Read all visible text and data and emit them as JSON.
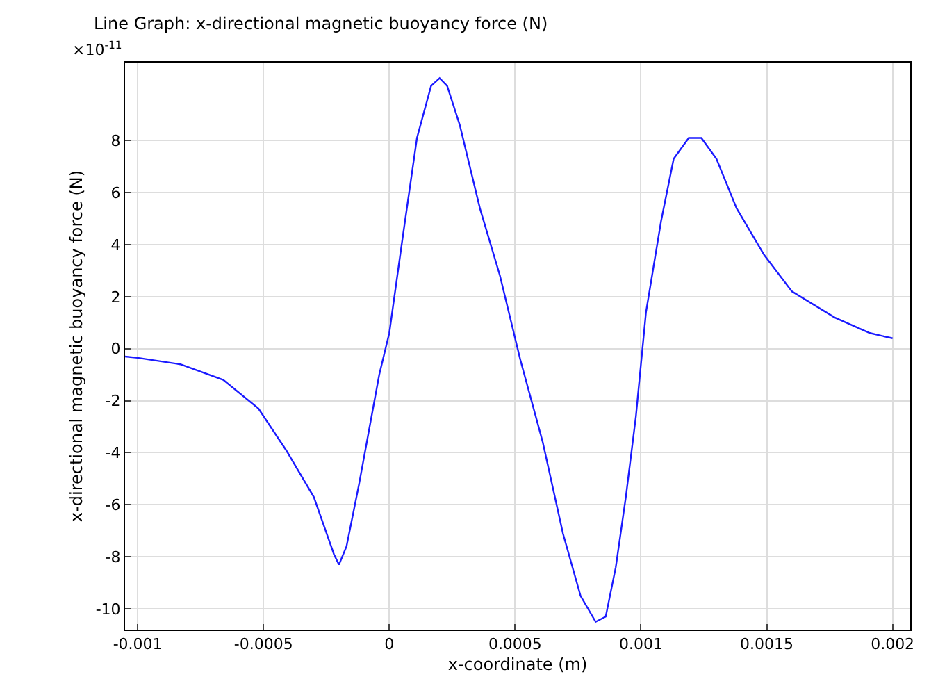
{
  "chart_data": {
    "type": "line",
    "title": "Line Graph: x-directional magnetic buoyancy force (N)",
    "xlabel": "x-coordinate (m)",
    "ylabel": "x-directional magnetic buoyancy force (N)",
    "annotations": [
      "×10$^{-11}$"
    ],
    "x": [
      -0.00105,
      -0.001,
      -0.00083,
      -0.00066,
      -0.00052,
      -0.00041,
      -0.0003,
      -0.00022,
      -0.0002,
      -0.00017,
      -0.00012,
      -8e-05,
      -4e-05,
      0,
      5.5e-05,
      0.00011,
      0.000166,
      0.0002,
      0.00023,
      0.00028,
      0.00036,
      0.00044,
      0.00052,
      0.00061,
      0.00069,
      0.00076,
      0.00082,
      0.00086,
      0.0009,
      0.00094,
      0.00098,
      0.00102,
      0.00108,
      0.00113,
      0.00119,
      0.00124,
      0.0013,
      0.00138,
      0.00149,
      0.0016,
      0.00177,
      0.00191,
      0.002
    ],
    "series": [
      {
        "color": "#1a1aff",
        "values": [
          -0.3,
          -0.35,
          -0.6,
          -1.2,
          -2.3,
          -3.9,
          -5.7,
          -7.9,
          -8.3,
          -7.6,
          -5.2,
          -3.1,
          -1.0,
          0.6,
          4.4,
          8.1,
          10.1,
          10.4,
          10.1,
          8.6,
          5.4,
          2.8,
          -0.4,
          -3.6,
          -7.1,
          -9.5,
          -10.5,
          -10.3,
          -8.4,
          -5.7,
          -2.6,
          1.4,
          4.9,
          7.3,
          8.1,
          8.1,
          7.3,
          5.4,
          3.6,
          2.2,
          1.2,
          0.6,
          0.4
        ]
      }
    ],
    "xlim": [
      -0.00105,
      0.00207
    ],
    "xticks": [
      -0.001,
      -0.0005,
      0,
      0.0005,
      0.001,
      0.0015,
      0.002
    ],
    "ylim": [
      -10.8,
      11
    ],
    "yticks": [
      -10,
      -8,
      -6,
      -4,
      -2,
      0,
      2,
      4,
      6,
      8
    ],
    "grid": true,
    "marker": "none",
    "line_style": "solid"
  }
}
